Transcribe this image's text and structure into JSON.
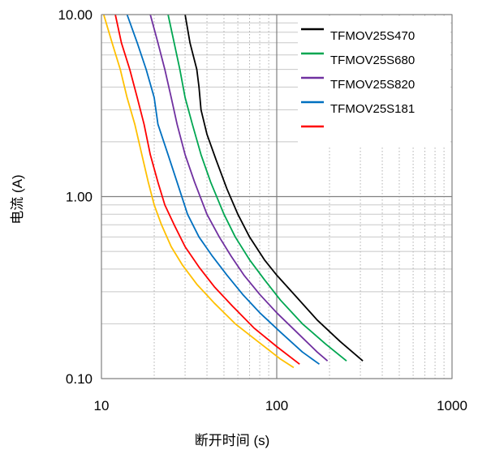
{
  "chart_data": {
    "type": "line",
    "xlabel": "断开时间 (s)",
    "ylabel": "电流 (A)",
    "xscale": "log",
    "yscale": "log",
    "xlim": [
      10,
      1000
    ],
    "ylim": [
      0.1,
      10
    ],
    "x_tick_labels": [
      "10",
      "100",
      "1000"
    ],
    "y_tick_labels": [
      "0.10",
      "1.00",
      "10.00"
    ],
    "grid": true,
    "legend_position": "top-right",
    "series": [
      {
        "name": "TFMOV25S470",
        "color": "#000000",
        "points": [
          [
            30,
            10
          ],
          [
            32,
            7
          ],
          [
            35,
            5
          ],
          [
            36,
            4
          ],
          [
            37,
            3
          ],
          [
            40,
            2.2
          ],
          [
            45,
            1.6
          ],
          [
            52,
            1.1
          ],
          [
            60,
            0.8
          ],
          [
            70,
            0.6
          ],
          [
            85,
            0.45
          ],
          [
            100,
            0.37
          ],
          [
            130,
            0.28
          ],
          [
            170,
            0.21
          ],
          [
            230,
            0.16
          ],
          [
            310,
            0.125
          ]
        ]
      },
      {
        "name": "TFMOV25S680",
        "color": "#00a651",
        "points": [
          [
            24,
            10
          ],
          [
            26,
            7
          ],
          [
            28,
            5
          ],
          [
            30,
            3.5
          ],
          [
            33,
            2.5
          ],
          [
            37,
            1.7
          ],
          [
            42,
            1.2
          ],
          [
            50,
            0.8
          ],
          [
            58,
            0.6
          ],
          [
            70,
            0.45
          ],
          [
            85,
            0.35
          ],
          [
            105,
            0.27
          ],
          [
            140,
            0.2
          ],
          [
            190,
            0.155
          ],
          [
            250,
            0.125
          ]
        ]
      },
      {
        "name": "TFMOV25S820",
        "color": "#7030a0",
        "points": [
          [
            19,
            10
          ],
          [
            21,
            7
          ],
          [
            23,
            5
          ],
          [
            25,
            3.5
          ],
          [
            27,
            2.5
          ],
          [
            30,
            1.7
          ],
          [
            34,
            1.2
          ],
          [
            40,
            0.8
          ],
          [
            47,
            0.6
          ],
          [
            55,
            0.47
          ],
          [
            65,
            0.37
          ],
          [
            80,
            0.29
          ],
          [
            100,
            0.23
          ],
          [
            130,
            0.18
          ],
          [
            170,
            0.14
          ],
          [
            195,
            0.125
          ]
        ]
      },
      {
        "name": "TFMOV25S181",
        "color": "#0070c0",
        "points": [
          [
            14,
            10
          ],
          [
            16,
            7
          ],
          [
            18,
            5
          ],
          [
            20,
            3.5
          ],
          [
            21,
            2.5
          ],
          [
            24,
            1.7
          ],
          [
            27,
            1.2
          ],
          [
            31,
            0.8
          ],
          [
            36,
            0.6
          ],
          [
            43,
            0.47
          ],
          [
            52,
            0.37
          ],
          [
            64,
            0.29
          ],
          [
            80,
            0.23
          ],
          [
            105,
            0.18
          ],
          [
            140,
            0.14
          ],
          [
            175,
            0.12
          ]
        ]
      },
      {
        "name": "",
        "color": "#ff0000",
        "points": [
          [
            12,
            10
          ],
          [
            13,
            7
          ],
          [
            14.5,
            5
          ],
          [
            16,
            3.5
          ],
          [
            17.5,
            2.5
          ],
          [
            19,
            1.7
          ],
          [
            21,
            1.2
          ],
          [
            23,
            0.9
          ],
          [
            26,
            0.7
          ],
          [
            30,
            0.53
          ],
          [
            36,
            0.41
          ],
          [
            44,
            0.32
          ],
          [
            56,
            0.25
          ],
          [
            74,
            0.19
          ],
          [
            100,
            0.15
          ],
          [
            135,
            0.12
          ]
        ]
      },
      {
        "name": "",
        "color": "#ffc000",
        "points": [
          [
            10.3,
            10
          ],
          [
            11.5,
            7
          ],
          [
            12.8,
            5
          ],
          [
            14,
            3.5
          ],
          [
            15.5,
            2.5
          ],
          [
            17,
            1.7
          ],
          [
            18.5,
            1.2
          ],
          [
            20,
            0.9
          ],
          [
            22,
            0.7
          ],
          [
            25,
            0.53
          ],
          [
            29,
            0.42
          ],
          [
            35,
            0.33
          ],
          [
            44,
            0.26
          ],
          [
            58,
            0.2
          ],
          [
            78,
            0.16
          ],
          [
            105,
            0.128
          ],
          [
            125,
            0.115
          ]
        ]
      }
    ]
  }
}
